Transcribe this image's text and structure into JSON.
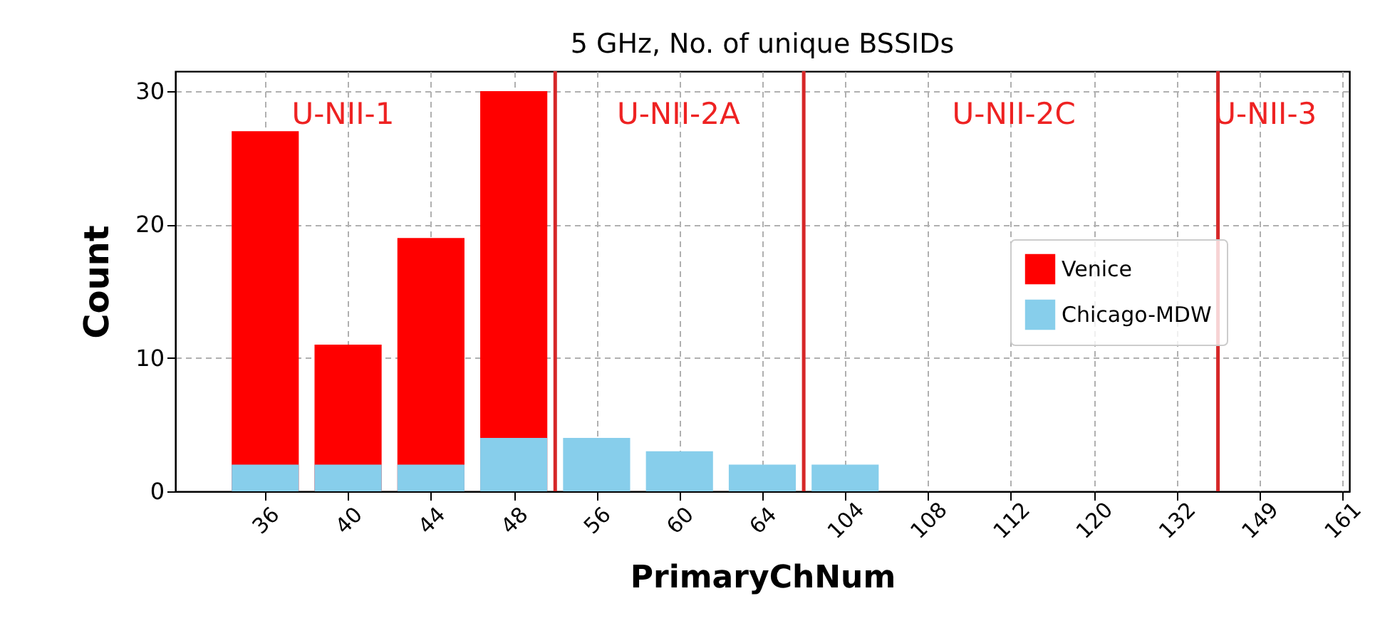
{
  "chart_data": {
    "type": "bar",
    "title": "5 GHz, No. of unique BSSIDs",
    "xlabel": "PrimaryChNum",
    "ylabel": "Count",
    "categories": [
      "36",
      "40",
      "44",
      "48",
      "56",
      "60",
      "64",
      "104",
      "108",
      "112",
      "120",
      "132",
      "149",
      "161"
    ],
    "series": [
      {
        "name": "Venice",
        "color": "#ff0000",
        "values": [
          27,
          11,
          19,
          30,
          0,
          0,
          0,
          0,
          0,
          0,
          0,
          0,
          0,
          0
        ]
      },
      {
        "name": "Chicago-MDW",
        "color": "#87ceeb",
        "values": [
          2,
          2,
          2,
          4,
          4,
          3,
          2,
          2,
          0,
          0,
          0,
          0,
          0,
          0
        ]
      }
    ],
    "ylim": [
      0,
      31.5
    ],
    "yticks": [
      0,
      10,
      20,
      30
    ],
    "grid": true,
    "legend": "center right",
    "annotations": [
      "U-NII-1",
      "U-NII-2A",
      "U-NII-2C",
      "U-NII-3"
    ]
  }
}
